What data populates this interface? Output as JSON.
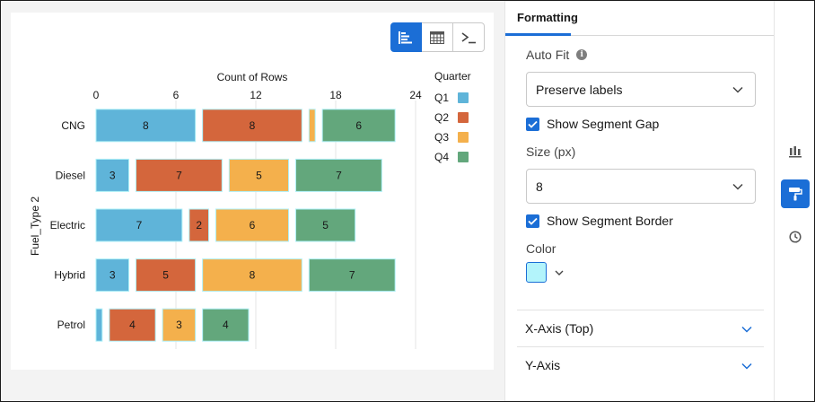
{
  "toolbar": {
    "views": [
      {
        "icon": "bar-chart-icon",
        "active": true
      },
      {
        "icon": "table-icon",
        "active": false
      },
      {
        "icon": "terminal-icon",
        "active": false
      }
    ]
  },
  "chart_data": {
    "type": "bar",
    "orientation": "horizontal",
    "stacked": true,
    "title": "Count of Rows",
    "xlabel": "Count of Rows",
    "ylabel": "Fuel_Type 2",
    "xlim": [
      0,
      24
    ],
    "xticks": [
      "0",
      "6",
      "12",
      "18",
      "24"
    ],
    "grid": true,
    "legend_title": "Quarter",
    "legend_position": "right",
    "categories": [
      "CNG",
      "Diesel",
      "Electric",
      "Hybrid",
      "Petrol"
    ],
    "series": [
      {
        "name": "Q1",
        "color": "#5fb4d9",
        "values": [
          8,
          3,
          7,
          3,
          1
        ],
        "labels": [
          "8",
          "3",
          "7",
          "3",
          ""
        ]
      },
      {
        "name": "Q2",
        "color": "#d4663c",
        "values": [
          8,
          7,
          2,
          5,
          4
        ],
        "labels": [
          "8",
          "7",
          "2",
          "5",
          "4"
        ]
      },
      {
        "name": "Q3",
        "color": "#f4b04c",
        "values": [
          1,
          5,
          6,
          8,
          3
        ],
        "labels": [
          "",
          "5",
          "6",
          "8",
          "3"
        ]
      },
      {
        "name": "Q4",
        "color": "#63a77c",
        "values": [
          6,
          7,
          5,
          7,
          4
        ],
        "labels": [
          "6",
          "7",
          "5",
          "7",
          "4"
        ]
      }
    ],
    "segment_border_color": "#aef0f8"
  },
  "panel": {
    "tab": "Formatting",
    "auto_fit_label": "Auto Fit",
    "auto_fit_value": "Preserve labels",
    "show_segment_gap": "Show Segment Gap",
    "size_label": "Size (px)",
    "size_value": "8",
    "show_segment_border": "Show Segment Border",
    "color_label": "Color",
    "color_value": "#b3f4fb",
    "sections": [
      {
        "label": "X-Axis (Top)"
      },
      {
        "label": "Y-Axis"
      }
    ]
  },
  "rail": {
    "items": [
      {
        "icon": "chart-properties-icon",
        "active": false
      },
      {
        "icon": "paint-roller-icon",
        "active": true
      },
      {
        "icon": "clock-icon",
        "active": false
      }
    ]
  }
}
